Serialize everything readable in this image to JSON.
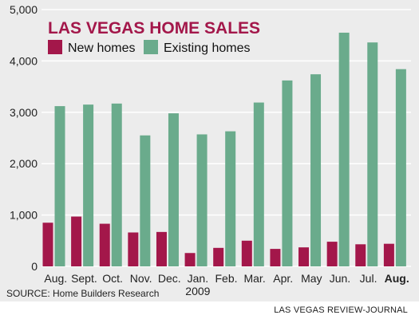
{
  "chart_data": {
    "type": "bar",
    "title": "LAS VEGAS HOME SALES",
    "categories": [
      "Aug.",
      "Sept.",
      "Oct.",
      "Nov.",
      "Dec.",
      "Jan.",
      "Feb.",
      "Mar.",
      "Apr.",
      "May",
      "Jun.",
      "Jul.",
      "Aug."
    ],
    "category_sublabels": {
      "Jan.": "2009"
    },
    "emphasized_category_index": 12,
    "series": [
      {
        "name": "New homes",
        "color": "#a3174a",
        "values": [
          850,
          970,
          830,
          660,
          670,
          260,
          360,
          500,
          340,
          370,
          480,
          430,
          440
        ]
      },
      {
        "name": "Existing homes",
        "color": "#6aab8c",
        "values": [
          3120,
          3150,
          3170,
          2550,
          2980,
          2570,
          2630,
          3190,
          3620,
          3740,
          4550,
          4360,
          3840
        ]
      }
    ],
    "yticks": [
      "0",
      "1,000",
      "2,000",
      "3,000",
      "4,000",
      "5,000"
    ],
    "ylim": [
      0,
      5000
    ],
    "xlabel": "",
    "ylabel": "",
    "grid": true,
    "legend_position": "top-left",
    "source": "SOURCE: Home Builders Research"
  },
  "credit": "LAS VEGAS REVIEW-JOURNAL",
  "colors": {
    "title": "#a3174a",
    "panel": "#ececec",
    "grid": "#ffffff"
  }
}
